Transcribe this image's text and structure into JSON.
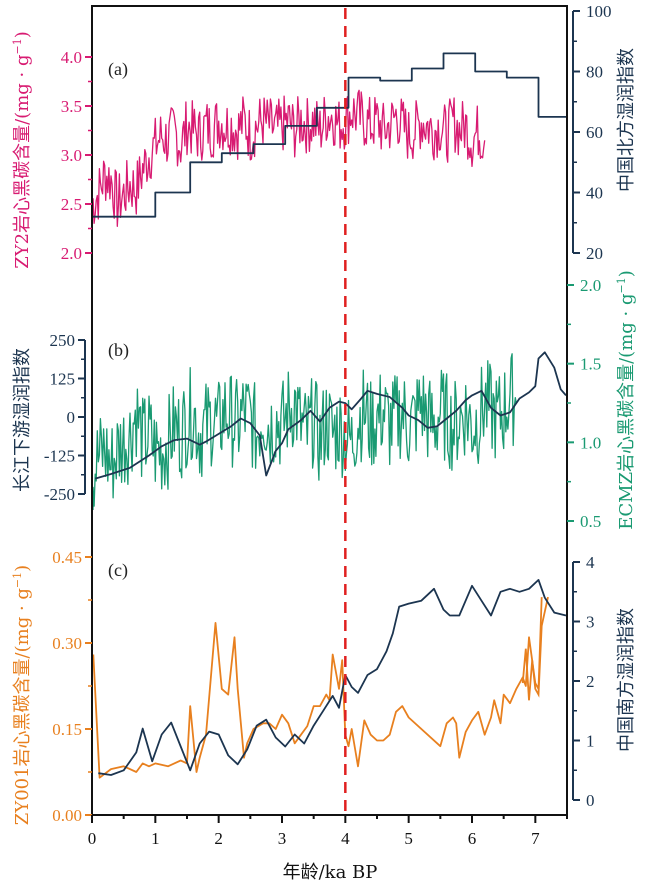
{
  "chart_data": {
    "type": "line",
    "xlabel": "年龄/ka BP",
    "xlim": [
      0,
      7.5
    ],
    "xticks": [
      "0",
      "1",
      "2",
      "3",
      "4",
      "5",
      "6",
      "7"
    ],
    "reference_line": {
      "x": 4.0,
      "style": "dashed",
      "color": "#e02020"
    },
    "colors": {
      "pink": "#d81b72",
      "navy": "#1c3550",
      "green": "#1a9a72",
      "orange": "#e8801f",
      "black": "#111111"
    },
    "panels": [
      {
        "label": "(a)",
        "left_axis": {
          "title": "ZY2岩心黑碳含量/(mg · g",
          "title_sup": "−1",
          "title_close": ")",
          "lim": [
            1.7,
            4.5
          ],
          "ticks": [
            "2.0",
            "2.5",
            "3.0",
            "3.5",
            "4.0"
          ],
          "tick_values": [
            2.0,
            2.5,
            3.0,
            3.5,
            4.0
          ]
        },
        "right_axis": {
          "title": "中国北方湿润指数",
          "lim": [
            20,
            100
          ],
          "ticks": [
            "20",
            "40",
            "60",
            "80",
            "100"
          ],
          "tick_values": [
            20,
            40,
            60,
            80,
            100
          ]
        },
        "series": [
          {
            "name": "ZY2岩心黑碳含量",
            "axis": "left",
            "color": "#d81b72",
            "style": "noisy",
            "x": [
              0.0,
              0.1,
              0.2,
              0.3,
              0.4,
              0.5,
              0.6,
              0.7,
              0.8,
              0.9,
              1.0,
              1.1,
              1.2,
              1.3,
              1.4,
              1.5,
              1.6,
              1.7,
              1.8,
              1.9,
              2.0,
              2.1,
              2.2,
              2.3,
              2.4,
              2.5,
              2.6,
              2.7,
              2.8,
              2.9,
              3.0,
              3.1,
              3.2,
              3.3,
              3.4,
              3.5,
              3.6,
              3.7,
              3.8,
              3.9,
              4.0,
              4.1,
              4.2,
              4.3,
              4.4,
              4.5,
              4.6,
              4.7,
              4.8,
              4.9,
              5.0,
              5.1,
              5.2,
              5.3,
              5.4,
              5.5,
              5.6,
              5.7,
              5.8,
              5.9,
              6.0,
              6.1,
              6.2
            ],
            "y": [
              2.5,
              2.6,
              2.8,
              2.75,
              2.5,
              2.6,
              2.7,
              2.65,
              2.85,
              3.0,
              3.1,
              3.2,
              3.15,
              3.25,
              3.1,
              3.3,
              3.25,
              3.2,
              3.3,
              3.25,
              3.35,
              3.3,
              3.3,
              3.25,
              3.35,
              3.2,
              3.3,
              3.35,
              3.3,
              3.25,
              3.3,
              3.35,
              3.25,
              3.35,
              3.3,
              3.35,
              3.25,
              3.4,
              3.4,
              3.3,
              3.35,
              3.45,
              3.4,
              3.35,
              3.3,
              3.35,
              3.25,
              3.3,
              3.4,
              3.3,
              3.2,
              3.25,
              3.35,
              3.3,
              3.25,
              3.3,
              3.2,
              3.35,
              3.25,
              3.3,
              3.15,
              3.25,
              3.15
            ],
            "noise": 0.3
          },
          {
            "name": "中国北方湿润指数",
            "axis": "right",
            "color": "#1c3550",
            "style": "step",
            "x": [
              0.0,
              1.0,
              1.0,
              1.55,
              1.55,
              2.05,
              2.05,
              2.55,
              2.55,
              3.05,
              3.05,
              3.55,
              3.55,
              4.05,
              4.05,
              4.55,
              4.55,
              5.05,
              5.05,
              5.55,
              5.55,
              6.05,
              6.05,
              6.55,
              6.55,
              7.05,
              7.05,
              7.5
            ],
            "y": [
              32,
              32,
              40,
              40,
              50,
              50,
              53,
              53,
              56,
              56,
              62,
              62,
              68,
              68,
              78,
              78,
              77,
              77,
              81,
              81,
              86,
              86,
              80,
              80,
              78,
              78,
              65,
              65
            ]
          }
        ]
      },
      {
        "label": "(b)",
        "left_axis": {
          "title": "长江下游湿润指数",
          "lim": [
            -250,
            250
          ],
          "ticks": [
            "-250",
            "-125",
            "0",
            "125",
            "250"
          ],
          "tick_values": [
            -250,
            -125,
            0,
            125,
            250
          ]
        },
        "right_axis": {
          "title": "ECMZ岩心黑碳含量/(mg · g",
          "title_sup": "−1",
          "title_close": ")",
          "lim": [
            0.5,
            2.0
          ],
          "ticks": [
            "0.5",
            "1.0",
            "1.5",
            "2.0"
          ],
          "tick_values": [
            0.5,
            1.0,
            1.5,
            2.0
          ]
        },
        "series": [
          {
            "name": "ECMZ岩心黑碳含量",
            "axis": "right",
            "color": "#1a9a72",
            "style": "noisy",
            "x": [
              0.0,
              0.1,
              0.2,
              0.3,
              0.4,
              0.5,
              0.6,
              0.7,
              0.8,
              0.9,
              1.0,
              1.1,
              1.2,
              1.3,
              1.4,
              1.5,
              1.6,
              1.7,
              1.8,
              1.9,
              2.0,
              2.1,
              2.2,
              2.3,
              2.4,
              2.5,
              2.6,
              2.7,
              2.8,
              2.9,
              3.0,
              3.1,
              3.2,
              3.3,
              3.4,
              3.5,
              3.6,
              3.7,
              3.8,
              3.9,
              4.0,
              4.1,
              4.2,
              4.3,
              4.4,
              4.5,
              4.6,
              4.7,
              4.8,
              4.9,
              5.0,
              5.1,
              5.2,
              5.3,
              5.4,
              5.5,
              5.6,
              5.7,
              5.8,
              5.9,
              6.0,
              6.1,
              6.2,
              6.3,
              6.4,
              6.5,
              6.6,
              6.7
            ],
            "y": [
              0.8,
              0.9,
              0.95,
              0.85,
              0.95,
              1.0,
              1.05,
              1.2,
              1.0,
              1.05,
              0.95,
              0.95,
              1.0,
              1.1,
              1.05,
              1.15,
              1.2,
              1.05,
              1.1,
              1.15,
              1.1,
              1.2,
              1.15,
              1.1,
              1.2,
              1.15,
              1.05,
              1.2,
              1.1,
              1.15,
              1.1,
              1.2,
              1.25,
              1.1,
              1.05,
              1.15,
              1.0,
              1.15,
              1.05,
              1.1,
              1.05,
              1.0,
              1.15,
              1.2,
              1.1,
              1.15,
              1.2,
              1.1,
              1.15,
              1.2,
              1.1,
              1.15,
              1.25,
              1.15,
              1.1,
              1.2,
              1.15,
              1.1,
              1.15,
              1.2,
              1.1,
              1.15,
              1.25,
              1.2,
              1.15,
              1.2,
              1.3,
              1.25
            ],
            "noise": 0.3
          },
          {
            "name": "长江下游湿润指数",
            "axis": "left",
            "color": "#1c3550",
            "style": "line",
            "x": [
              0.05,
              0.3,
              0.6,
              0.9,
              1.1,
              1.3,
              1.5,
              1.7,
              1.8,
              2.0,
              2.2,
              2.35,
              2.5,
              2.65,
              2.75,
              2.9,
              3.0,
              3.1,
              3.3,
              3.45,
              3.6,
              3.75,
              3.9,
              4.0,
              4.1,
              4.25,
              4.35,
              4.5,
              4.7,
              4.9,
              5.0,
              5.15,
              5.3,
              5.45,
              5.6,
              5.75,
              5.9,
              6.0,
              6.15,
              6.3,
              6.45,
              6.6,
              6.75,
              6.9,
              7.0,
              7.05,
              7.15,
              7.3,
              7.4,
              7.5
            ],
            "y": [
              -200,
              -185,
              -165,
              -125,
              -95,
              -75,
              -70,
              -90,
              -80,
              -55,
              -30,
              -5,
              -20,
              -60,
              -190,
              -110,
              -85,
              -40,
              -10,
              20,
              -15,
              30,
              50,
              45,
              25,
              60,
              85,
              75,
              65,
              30,
              5,
              -10,
              -35,
              -30,
              -5,
              20,
              55,
              70,
              85,
              30,
              5,
              15,
              60,
              80,
              100,
              190,
              210,
              160,
              90,
              70
            ]
          }
        ]
      },
      {
        "label": "(c)",
        "left_axis": {
          "title": "ZY001岩心黑碳含量/(mg · g",
          "title_sup": "−1",
          "title_close": ")",
          "lim": [
            0.0,
            0.45
          ],
          "ticks": [
            "0.00",
            "0.15",
            "0.30",
            "0.45"
          ],
          "tick_values": [
            0.0,
            0.15,
            0.3,
            0.45
          ]
        },
        "right_axis": {
          "title": "中国南方湿润指数",
          "lim": [
            0,
            4
          ],
          "ticks": [
            "0",
            "1",
            "2",
            "3",
            "4"
          ],
          "tick_values": [
            0,
            1,
            2,
            3,
            4
          ]
        },
        "series": [
          {
            "name": "ZY001岩心黑碳含量",
            "axis": "left",
            "color": "#e8801f",
            "style": "line",
            "x": [
              0.02,
              0.12,
              0.3,
              0.5,
              0.7,
              0.8,
              0.9,
              1.0,
              1.2,
              1.4,
              1.5,
              1.55,
              1.65,
              1.7,
              1.8,
              1.95,
              2.05,
              2.15,
              2.25,
              2.3,
              2.4,
              2.45,
              2.55,
              2.7,
              2.8,
              2.9,
              3.0,
              3.1,
              3.2,
              3.3,
              3.4,
              3.5,
              3.6,
              3.7,
              3.75,
              3.8,
              3.9,
              3.95,
              4.0,
              4.05,
              4.1,
              4.2,
              4.3,
              4.4,
              4.5,
              4.6,
              4.7,
              4.8,
              4.9,
              5.0,
              5.5,
              5.6,
              5.7,
              5.75,
              5.8,
              5.9,
              6.0,
              6.1,
              6.2,
              6.3,
              6.35,
              6.45,
              6.5,
              6.6,
              6.7,
              6.8,
              6.85,
              6.9,
              7.0,
              7.05,
              7.1
            ],
            "y": [
              0.28,
              0.065,
              0.08,
              0.085,
              0.075,
              0.09,
              0.085,
              0.09,
              0.085,
              0.095,
              0.09,
              0.19,
              0.075,
              0.1,
              0.14,
              0.335,
              0.22,
              0.21,
              0.31,
              0.22,
              0.1,
              0.125,
              0.15,
              0.16,
              0.16,
              0.15,
              0.175,
              0.16,
              0.125,
              0.14,
              0.155,
              0.19,
              0.19,
              0.21,
              0.2,
              0.28,
              0.22,
              0.27,
              0.14,
              0.12,
              0.15,
              0.085,
              0.165,
              0.14,
              0.13,
              0.13,
              0.14,
              0.18,
              0.19,
              0.17,
              0.12,
              0.16,
              0.17,
              0.16,
              0.1,
              0.145,
              0.165,
              0.18,
              0.14,
              0.17,
              0.2,
              0.16,
              0.21,
              0.195,
              0.22,
              0.24,
              0.225,
              0.31,
              0.23,
              0.22,
              0.38
            ],
            "extra": {
              "x": [
                6.8,
                6.85,
                6.9,
                6.95,
                7.0,
                7.05,
                7.1,
                7.2
              ],
              "y": [
                0.23,
                0.29,
                0.2,
                0.27,
                0.22,
                0.21,
                0.33,
                0.38
              ]
            }
          },
          {
            "name": "中国南方湿润指数",
            "axis": "right",
            "color": "#1c3550",
            "style": "line",
            "x": [
              0.1,
              0.3,
              0.5,
              0.7,
              0.8,
              0.95,
              1.1,
              1.25,
              1.4,
              1.55,
              1.7,
              1.85,
              2.0,
              2.15,
              2.3,
              2.45,
              2.6,
              2.75,
              2.9,
              3.05,
              3.2,
              3.35,
              3.5,
              3.65,
              3.8,
              3.9,
              4.0,
              4.1,
              4.2,
              4.35,
              4.5,
              4.65,
              4.75,
              4.85,
              5.0,
              5.2,
              5.4,
              5.55,
              5.65,
              5.8,
              6.0,
              6.15,
              6.3,
              6.45,
              6.6,
              6.75,
              6.9,
              7.05,
              7.15,
              7.3,
              7.5
            ],
            "y": [
              0.45,
              0.42,
              0.5,
              0.8,
              1.2,
              0.65,
              1.1,
              1.3,
              0.9,
              0.5,
              0.95,
              1.15,
              1.1,
              0.75,
              0.6,
              0.85,
              1.25,
              1.35,
              1.05,
              0.9,
              1.1,
              0.95,
              1.25,
              1.5,
              1.75,
              1.55,
              2.1,
              1.9,
              1.8,
              2.1,
              2.2,
              2.5,
              2.8,
              3.25,
              3.3,
              3.35,
              3.55,
              3.2,
              3.1,
              3.1,
              3.6,
              3.35,
              3.1,
              3.5,
              3.55,
              3.5,
              3.55,
              3.7,
              3.4,
              3.15,
              3.1
            ]
          }
        ]
      }
    ]
  }
}
